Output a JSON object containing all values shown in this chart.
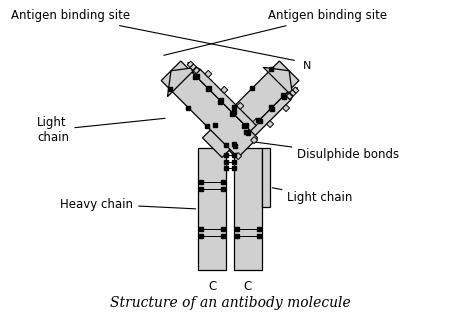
{
  "title": "Structure of an antibody molecule",
  "title_fontsize": 10,
  "bg_color": "#ffffff",
  "outline_color": "#000000",
  "fill_light": "#d0d0d0",
  "fill_white": "#ffffff",
  "labels": {
    "antigen_binding_left": "Antigen binding site",
    "antigen_binding_right": "Antigen binding site",
    "light_chain_left": "Light\nchain",
    "light_chain_right": "Light chain",
    "heavy_chain": "Heavy chain",
    "disulphide": "Disulphide bonds",
    "N_left": "N",
    "C_left": "C",
    "C_right": "C"
  },
  "fig_width": 4.74,
  "fig_height": 3.13,
  "dpi": 100
}
